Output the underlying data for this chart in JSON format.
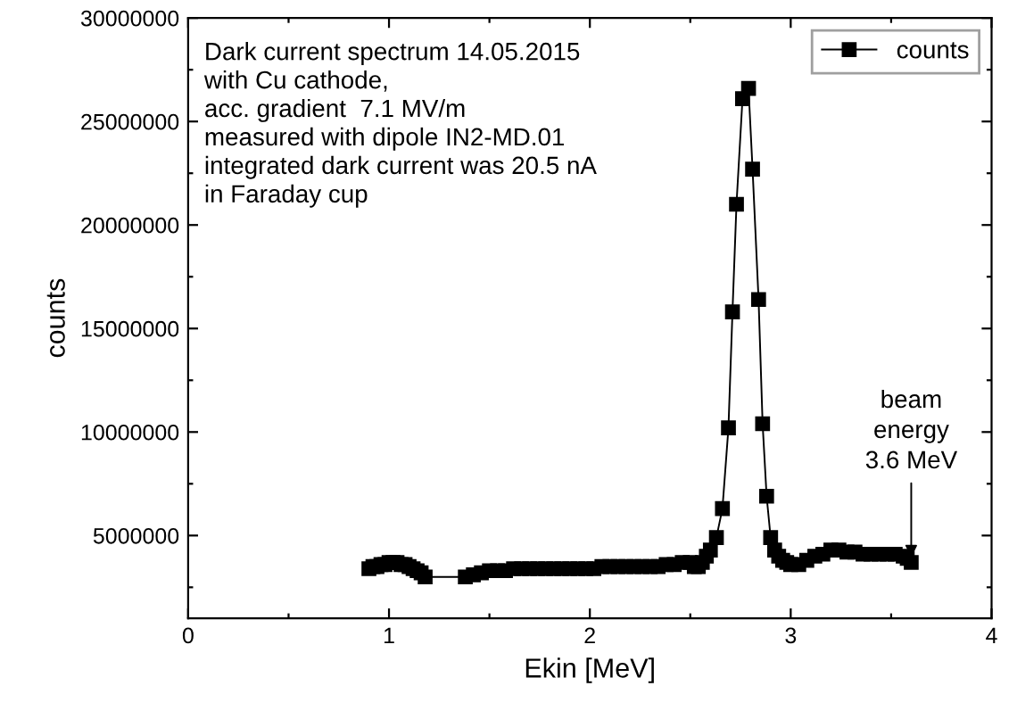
{
  "chart_data": {
    "type": "line",
    "xlabel": "Ekin [MeV]",
    "ylabel": "counts",
    "xlim": [
      0,
      4
    ],
    "ylim": [
      1000000,
      30000000
    ],
    "xticks": [
      0,
      {
        "value": 0.5,
        "label": null
      },
      1,
      {
        "value": 1.5,
        "label": null
      },
      2,
      {
        "value": 2.5,
        "label": null
      },
      3,
      {
        "value": 3.5,
        "label": null
      },
      4
    ],
    "yticks": [
      {
        "value": 2500000,
        "label": null
      },
      5000000,
      {
        "value": 7500000,
        "label": null
      },
      10000000,
      {
        "value": 12500000,
        "label": null
      },
      15000000,
      {
        "value": 17500000,
        "label": null
      },
      20000000,
      {
        "value": 22500000,
        "label": null
      },
      25000000,
      {
        "value": 27500000,
        "label": null
      },
      30000000
    ],
    "grid": false,
    "legend": "top right",
    "marker": "square",
    "line_style": "solid",
    "annotations": [
      "Dark current spectrum 14.05.2015\nwith Cu cathode,\nacc. gradient  7.1 MV/m\nmeasured with dipole IN2-MD.01\nintegrated dark current was 20.5 nA\nin Faraday cup",
      {
        "text": "beam\nenergy\n3.6 MeV",
        "x": 3.6,
        "y": 3700000
      }
    ],
    "series": [
      {
        "name": "counts",
        "color": "#000000",
        "x": [
          0.9,
          0.92,
          0.94,
          0.96,
          0.98,
          1.0,
          1.02,
          1.04,
          1.06,
          1.08,
          1.1,
          1.12,
          1.14,
          1.16,
          1.18,
          1.38,
          1.42,
          1.46,
          1.5,
          1.54,
          1.58,
          1.62,
          1.66,
          1.7,
          1.74,
          1.78,
          1.82,
          1.86,
          1.9,
          1.94,
          1.98,
          2.02,
          2.06,
          2.1,
          2.14,
          2.18,
          2.22,
          2.26,
          2.3,
          2.34,
          2.38,
          2.42,
          2.46,
          2.5,
          2.52,
          2.54,
          2.56,
          2.58,
          2.6,
          2.63,
          2.66,
          2.69,
          2.71,
          2.73,
          2.76,
          2.79,
          2.81,
          2.84,
          2.86,
          2.88,
          2.9,
          2.92,
          2.94,
          2.96,
          2.98,
          3.0,
          3.04,
          3.08,
          3.12,
          3.16,
          3.2,
          3.24,
          3.28,
          3.32,
          3.36,
          3.4,
          3.44,
          3.48,
          3.52,
          3.56,
          3.58,
          3.6
        ],
        "values": [
          3400000,
          3500000,
          3500000,
          3600000,
          3600000,
          3700000,
          3700000,
          3700000,
          3600000,
          3600000,
          3500000,
          3400000,
          3300000,
          3200000,
          3000000,
          3000000,
          3100000,
          3200000,
          3300000,
          3300000,
          3300000,
          3400000,
          3400000,
          3400000,
          3400000,
          3400000,
          3400000,
          3400000,
          3400000,
          3400000,
          3400000,
          3400000,
          3500000,
          3500000,
          3500000,
          3500000,
          3500000,
          3500000,
          3500000,
          3500000,
          3600000,
          3600000,
          3700000,
          3700000,
          3500000,
          3500000,
          3700000,
          4000000,
          4300000,
          4900000,
          6300000,
          10200000,
          15800000,
          21000000,
          26100000,
          26600000,
          22700000,
          16400000,
          10400000,
          6900000,
          4900000,
          4300000,
          4000000,
          3800000,
          3700000,
          3600000,
          3600000,
          3800000,
          4000000,
          4100000,
          4300000,
          4300000,
          4200000,
          4200000,
          4100000,
          4100000,
          4100000,
          4100000,
          4100000,
          4000000,
          3900000,
          3700000
        ]
      }
    ]
  }
}
